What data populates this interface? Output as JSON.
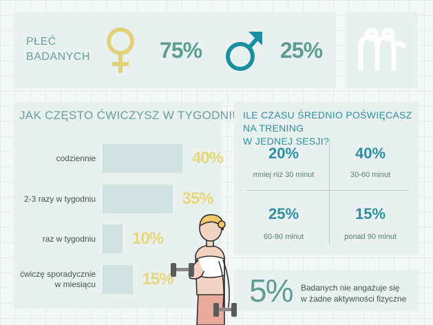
{
  "gender": {
    "label": "PŁEĆ\nBADANYCH",
    "female_pct": "75%",
    "male_pct": "25%",
    "colors": {
      "female": "#e2d17b",
      "male": "#1b8fa2",
      "text": "#5f9c93"
    }
  },
  "logo": {
    "icon": "m-logo-icon"
  },
  "chart_data": [
    {
      "type": "bar",
      "title": "JAK CZĘSTO ĆWICZYSZ W TYGODNIU?",
      "categories": [
        "codziennie",
        "2-3 razy w tygodniu",
        "raz w tygodniu",
        "ćwiczę sporadycznie\nw miesiącu"
      ],
      "values": [
        40,
        35,
        10,
        15
      ],
      "value_labels": [
        "40%",
        "35%",
        "10%",
        "15%"
      ],
      "ylim": [
        0,
        40
      ],
      "orientation": "horizontal",
      "bar_color": "#cfe2df",
      "label_color": "#e7d57a"
    },
    {
      "type": "table",
      "title": "ILE CZASU ŚREDNIO POŚWIĘCASZ NA TRENING\nW JEDNEJ SESJI?",
      "cells": [
        {
          "value": "20%",
          "label": "mniej niż 30 minut"
        },
        {
          "value": "40%",
          "label": "30-60 minut"
        },
        {
          "value": "25%",
          "label": "60-90 minut"
        },
        {
          "value": "15%",
          "label": "ponad 90 minut"
        }
      ]
    }
  ],
  "inactive": {
    "pct": "5%",
    "text": "Badanych nie angażuje się\nw żadne aktywności fizyczne"
  },
  "illustration": {
    "icon": "woman-lifting-dumbbells-icon"
  }
}
